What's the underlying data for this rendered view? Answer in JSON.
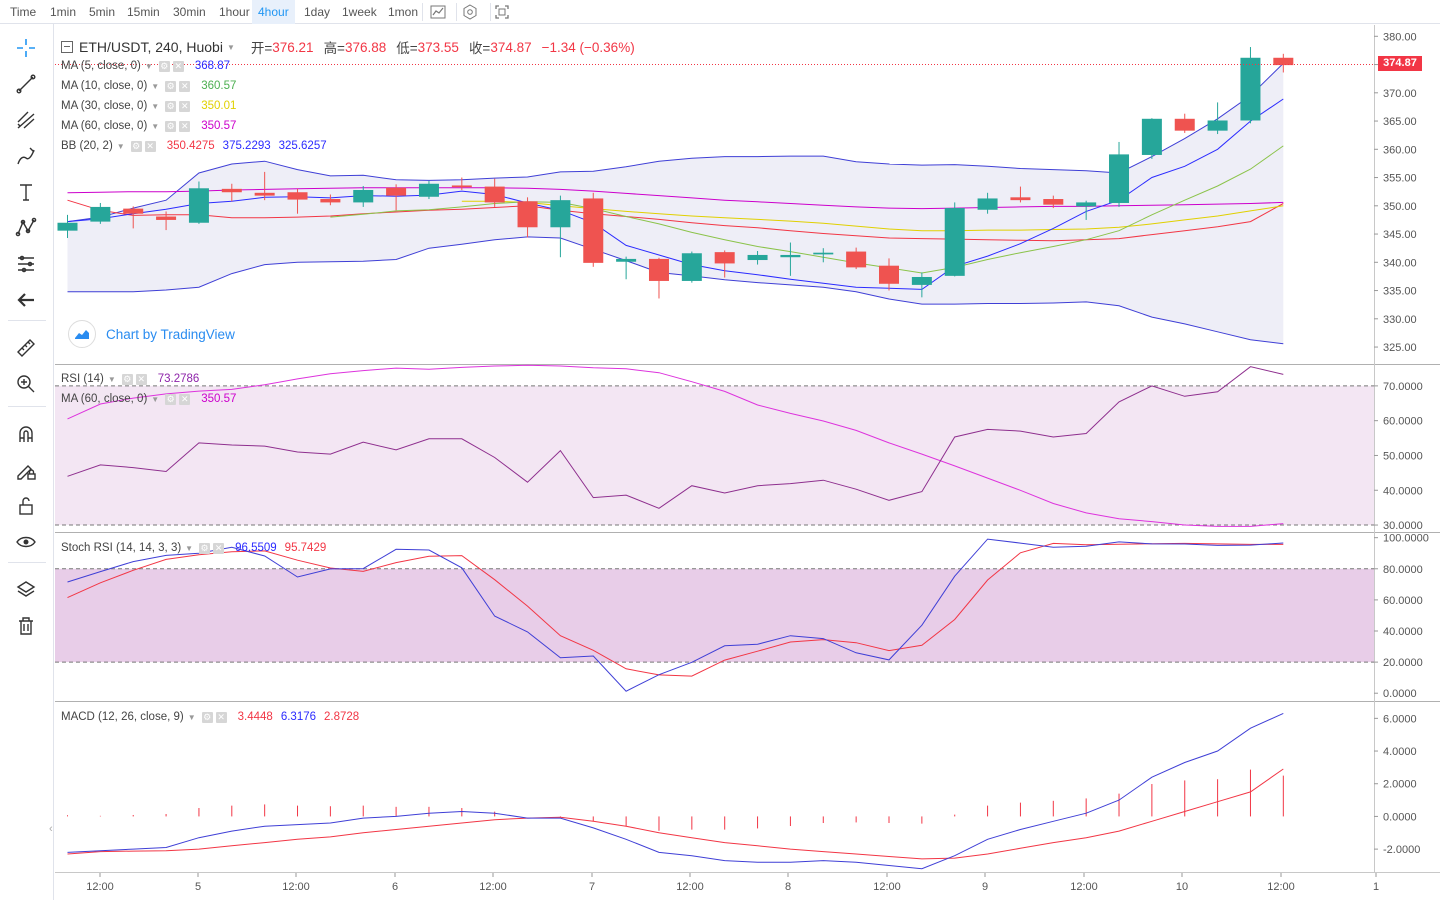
{
  "toolbar": {
    "timeframes": [
      {
        "label": "Time",
        "active": false
      },
      {
        "label": "1min",
        "active": false
      },
      {
        "label": "5min",
        "active": false
      },
      {
        "label": "15min",
        "active": false
      },
      {
        "label": "30min",
        "active": false
      },
      {
        "label": "1hour",
        "active": false
      },
      {
        "label": "4hour",
        "active": true
      },
      {
        "label": "1day",
        "active": false
      },
      {
        "label": "1week",
        "active": false
      },
      {
        "label": "1mon",
        "active": false
      }
    ],
    "icons": [
      "indicators-icon",
      "settings-icon",
      "fullscreen-icon"
    ]
  },
  "left_tools": [
    "crosshair-icon",
    "trend-line-icon",
    "pitchfork-icon",
    "brush-icon",
    "text-icon",
    "pattern-icon",
    "prediction-icon",
    "back-arrow-icon",
    "ruler-icon",
    "zoom-in-icon",
    "magnet-icon",
    "lock-drawing-icon",
    "unlock-icon",
    "eye-icon",
    "layers-icon",
    "trash-icon"
  ],
  "main": {
    "symbol": "ETH/USDT, 240, Huobi",
    "o_label": "开=",
    "o": "376.21",
    "h_label": "高=",
    "h": "376.88",
    "l_label": "低=",
    "l": "373.55",
    "c_label": "收=",
    "c": "374.87",
    "change": "−1.34 (−0.36%)",
    "last_price": "374.87",
    "indicators": [
      {
        "name": "MA (5, close, 0)",
        "values": [
          "368.87"
        ],
        "colors": [
          "#2b2bff"
        ]
      },
      {
        "name": "MA (10, close, 0)",
        "values": [
          "360.57"
        ],
        "colors": [
          "#4caf50"
        ]
      },
      {
        "name": "MA (30, close, 0)",
        "values": [
          "350.01"
        ],
        "colors": [
          "#e0d000"
        ]
      },
      {
        "name": "MA (60, close, 0)",
        "values": [
          "350.57"
        ],
        "colors": [
          "#cc00cc"
        ]
      },
      {
        "name": "BB (20, 2)",
        "values": [
          "350.4275",
          "375.2293",
          "325.6257"
        ],
        "colors": [
          "#f23645",
          "#2b2bff",
          "#2b2bff"
        ]
      }
    ],
    "watermark": "Chart by TradingView",
    "y_ticks": [
      "380.00",
      "375.00",
      "370.00",
      "365.00",
      "360.00",
      "355.00",
      "350.00",
      "345.00",
      "340.00",
      "335.00",
      "330.00",
      "325.00"
    ]
  },
  "rsi": {
    "indicators": [
      {
        "name": "RSI (14)",
        "values": [
          "73.2786"
        ],
        "colors": [
          "#8e24aa"
        ]
      },
      {
        "name": "MA (60, close, 0)",
        "values": [
          "350.57"
        ],
        "colors": [
          "#cc00cc"
        ]
      }
    ],
    "y_ticks": [
      "70.0000",
      "60.0000",
      "50.0000",
      "40.0000",
      "30.0000"
    ]
  },
  "stoch": {
    "indicators": [
      {
        "name": "Stoch RSI (14, 14, 3, 3)",
        "values": [
          "96.5509",
          "95.7429"
        ],
        "colors": [
          "#2b2bff",
          "#f23645"
        ]
      }
    ],
    "y_ticks": [
      "100.0000",
      "80.0000",
      "60.0000",
      "40.0000",
      "20.0000",
      "0.0000"
    ]
  },
  "macd": {
    "indicators": [
      {
        "name": "MACD (12, 26, close, 9)",
        "values": [
          "3.4448",
          "6.3176",
          "2.8728"
        ],
        "colors": [
          "#f23645",
          "#2b2bff",
          "#f23645"
        ]
      }
    ],
    "y_ticks": [
      "6.0000",
      "4.0000",
      "2.0000",
      "0.0000",
      "-2.0000"
    ]
  },
  "x_axis": {
    "labels": [
      "12:00",
      "5",
      "12:00",
      "6",
      "12:00",
      "7",
      "12:00",
      "8",
      "12:00",
      "9",
      "12:00",
      "10",
      "12:00",
      "1"
    ]
  },
  "colors": {
    "up": "#26a69a",
    "down": "#ef5350",
    "accent": "#2196f3",
    "bb_fill": "#e8e8f4",
    "rsi_fill": "#f3e6f3",
    "stoch_fill": "#e8cde8"
  }
}
